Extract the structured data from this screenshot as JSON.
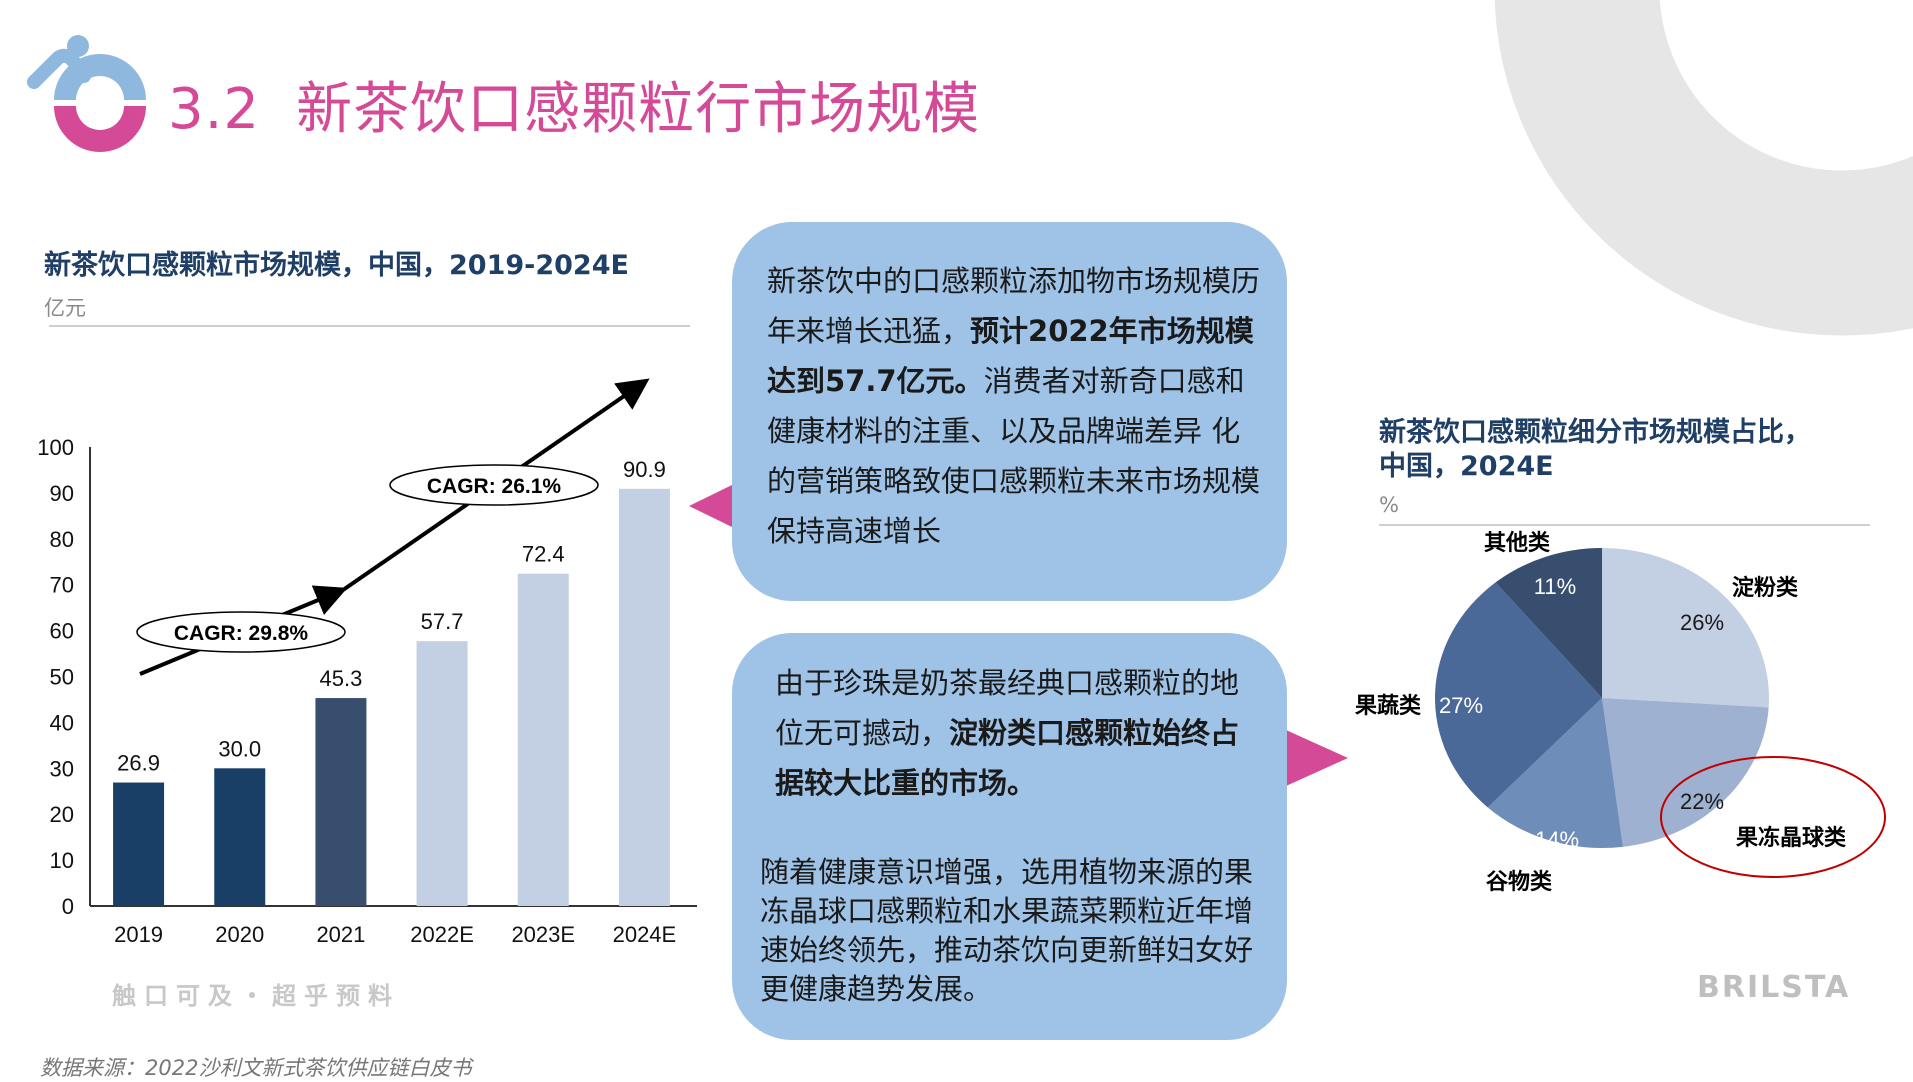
{
  "header": {
    "section_number": "3.2",
    "title": "新茶饮口感颗粒行市场规模"
  },
  "colors": {
    "accent_pink": "#d44a96",
    "logo_blue": "#8fb8de",
    "callout_bg": "#9fc3e7",
    "title_navy": "#1f3f66",
    "deco_gray": "#e6e6e6",
    "highlight_red": "#c00000"
  },
  "callout_top": {
    "parts": [
      "新茶饮中的口感颗粒添加物市场规模历年来增长迅猛，",
      "预计2022年市场规模达到57.7亿元。",
      "消费者对新奇口感和健康材料的注重、以及品牌端差异 化的营销策略致使口感颗粒未来市场规模保持高速增长"
    ]
  },
  "callout_bottom": {
    "p1_parts": [
      "由于珍珠是奶茶最经典口感颗粒的地位无可撼动，",
      "淀粉类口感颗粒始终占据较大比重的市场。"
    ],
    "p2": "随着健康意识增强，选用植物来源的果冻晶球口感颗粒和水果蔬菜颗粒近年增速始终领先，推动茶饮向更新鲜妇女好更健康趋势发展。"
  },
  "watermark": "触口可及・超乎预料",
  "brand": "BRILSTA",
  "source": "数据来源：2022沙利文新式茶饮供应链白皮书",
  "chart_data": [
    {
      "type": "bar",
      "title": "新茶饮口感颗粒市场规模，中国，2019-2024E",
      "unit": "亿元",
      "categories": [
        "2019",
        "2020",
        "2021",
        "2022E",
        "2023E",
        "2024E"
      ],
      "values": [
        26.9,
        30.0,
        45.3,
        57.7,
        72.4,
        90.9
      ],
      "value_labels": [
        "26.9",
        "30.0",
        "45.3",
        "57.7",
        "72.4",
        "90.9"
      ],
      "bar_colors": [
        "#1a3f66",
        "#1a3f66",
        "#384e6e",
        "#c3cfe2",
        "#c3cfe2",
        "#c3cfe2"
      ],
      "ylim": [
        0,
        100
      ],
      "yticks": [
        "0",
        "10",
        "20",
        "30",
        "40",
        "50",
        "60",
        "70",
        "80",
        "90",
        "100"
      ],
      "annotations": [
        "CAGR: 29.8%",
        "CAGR: 26.1%"
      ],
      "grid": false
    },
    {
      "type": "pie",
      "title_line1": "新茶饮口感颗粒细分市场规模占比，",
      "title_line2": "中国，2024E",
      "unit": "%",
      "slices": [
        {
          "name": "淀粉类",
          "value": 26,
          "label": "26%",
          "color": "#c3cfe2",
          "label_color": "#1a1a1a"
        },
        {
          "name": "果冻晶球类",
          "value": 22,
          "label": "22%",
          "color": "#9fb1d0",
          "label_color": "#1a1a1a"
        },
        {
          "name": "谷物类",
          "value": 14,
          "label": "14%",
          "color": "#6e8db8",
          "label_color": "#ffffff"
        },
        {
          "name": "果蔬类",
          "value": 27,
          "label": "27%",
          "color": "#4a6898",
          "label_color": "#ffffff"
        },
        {
          "name": "其他类",
          "value": 11,
          "label": "11%",
          "color": "#384e6e",
          "label_color": "#ffffff"
        }
      ],
      "highlighted": "果冻晶球类"
    }
  ]
}
